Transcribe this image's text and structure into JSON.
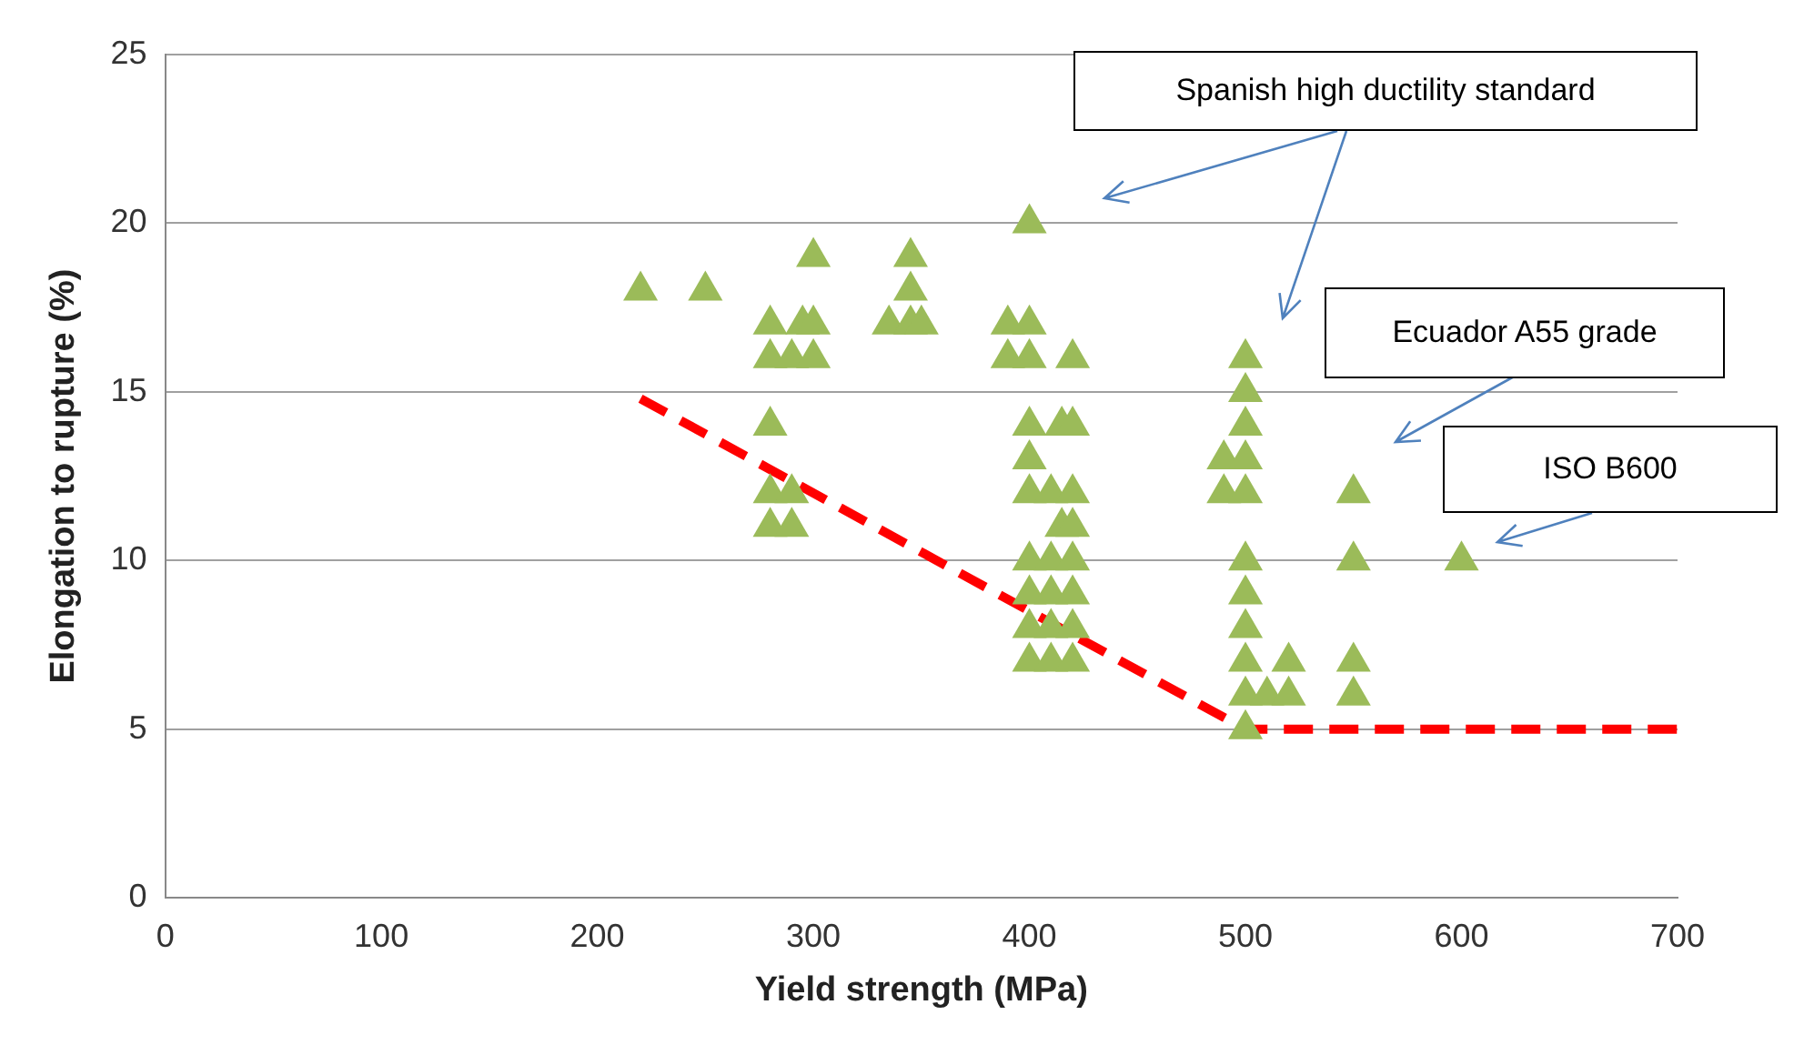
{
  "chart_data": {
    "type": "scatter",
    "xlabel": "Yield strength (MPa)",
    "ylabel": "Elongation to rupture (%)",
    "xlim": [
      0,
      700
    ],
    "xticks": [
      0,
      100,
      200,
      300,
      400,
      500,
      600,
      700
    ],
    "ylim": [
      0,
      25
    ],
    "yticks": [
      0,
      5,
      10,
      15,
      20,
      25
    ],
    "grid": "y",
    "legend": false,
    "annotations": [
      "Spanish high ductility standard",
      "Ecuador A55 grade",
      "ISO B600"
    ],
    "series": [
      {
        "type": "scatter",
        "color": "#9bbb59",
        "marker": "triangle",
        "x": [
          220,
          250,
          280,
          280,
          280,
          280,
          280,
          290,
          290,
          290,
          295,
          300,
          300,
          300,
          335,
          345,
          345,
          345,
          350,
          390,
          390,
          400,
          400,
          400,
          400,
          400,
          400,
          400,
          400,
          400,
          400,
          410,
          410,
          410,
          410,
          410,
          415,
          415,
          420,
          420,
          420,
          420,
          420,
          420,
          420,
          420,
          490,
          490,
          500,
          500,
          500,
          500,
          500,
          500,
          500,
          500,
          500,
          500,
          500,
          510,
          520,
          520,
          550,
          550,
          550,
          550,
          600
        ],
        "values": [
          18,
          18,
          17,
          16,
          14,
          12,
          11,
          16,
          12,
          11,
          17,
          19,
          17,
          16,
          17,
          19,
          18,
          17,
          17,
          17,
          16,
          20,
          17,
          16,
          14,
          13,
          12,
          10,
          9,
          8,
          7,
          12,
          10,
          9,
          8,
          7,
          14,
          11,
          16,
          14,
          12,
          11,
          10,
          9,
          8,
          7,
          13,
          12,
          16,
          15,
          14,
          13,
          12,
          10,
          9,
          8,
          7,
          6,
          5,
          6,
          7,
          6,
          12,
          10,
          7,
          6,
          10
        ]
      },
      {
        "type": "line",
        "color": "#ff0000",
        "marker": "none",
        "line_style": "dashed",
        "x": [
          220,
          500,
          700
        ],
        "values": [
          14.8,
          5,
          5
        ]
      }
    ]
  }
}
